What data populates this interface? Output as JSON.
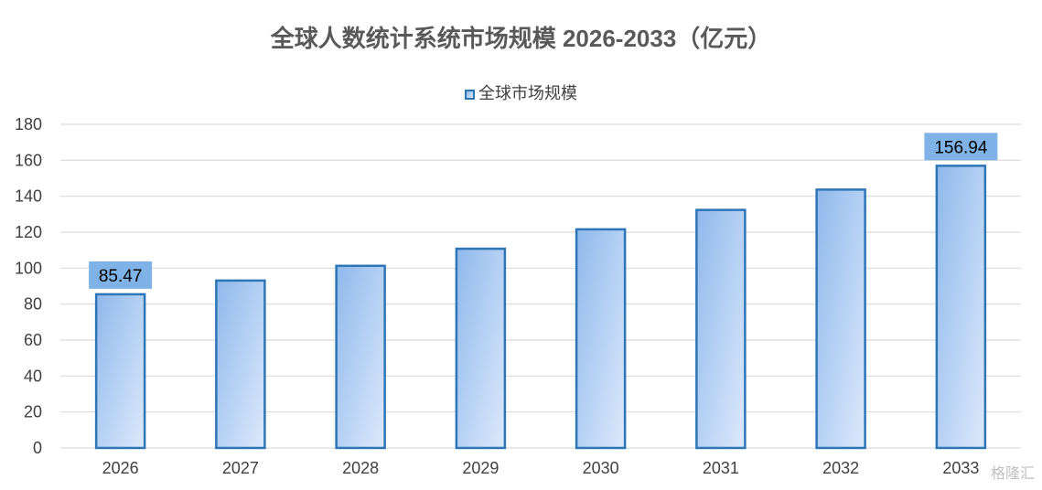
{
  "chart_data": {
    "type": "bar",
    "title": "全球人数统计系统市场规模 2026-2033（亿元）",
    "categories": [
      "2026",
      "2027",
      "2028",
      "2029",
      "2030",
      "2031",
      "2032",
      "2033"
    ],
    "series": [
      {
        "name": "全球市场规模",
        "values": [
          85.47,
          93.1,
          101.3,
          110.8,
          121.6,
          132.4,
          143.7,
          156.94
        ]
      }
    ],
    "data_labels": [
      {
        "category": "2026",
        "text": "85.47"
      },
      {
        "category": "2033",
        "text": "156.94"
      }
    ],
    "xlabel": "",
    "ylabel": "",
    "ylim": [
      0,
      180
    ],
    "yticks": [
      0,
      20,
      40,
      60,
      80,
      100,
      120,
      140,
      160,
      180
    ],
    "grid": true,
    "legend_position": "top-center",
    "colors": {
      "bar_border": "#2e75b6",
      "bar_fill_dark": "#8fb8ec",
      "bar_fill_light": "#dce9fb",
      "label_bg": "#7fb2e6",
      "grid": "#d9d9d9"
    }
  },
  "watermark": "格隆汇"
}
